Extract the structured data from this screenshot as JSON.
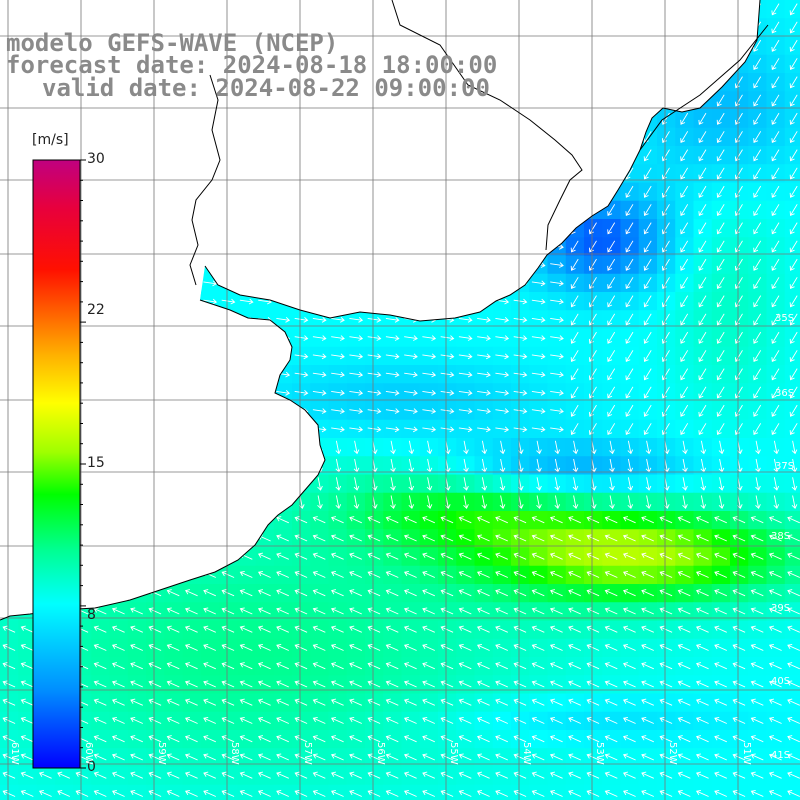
{
  "title": {
    "line1": "modelo GEFS-WAVE (NCEP)",
    "line2": "forecast date: 2024-08-18 18:00:00",
    "line3": "valid date: 2024-08-22 09:00:00"
  },
  "colorbar": {
    "unit": "[m/s]",
    "ticks": [
      "30",
      "22",
      "15",
      "8",
      "0"
    ],
    "tick_values": [
      30,
      22,
      15,
      8,
      0
    ],
    "range": [
      0,
      30
    ],
    "colors": [
      "#0000ff",
      "#00a0ff",
      "#00ffff",
      "#00ff80",
      "#00ff00",
      "#80ff00",
      "#ffff00",
      "#ffa000",
      "#ff5000",
      "#ff0000",
      "#e0004a",
      "#c0007a"
    ]
  },
  "latitude_labels": [
    "35S",
    "36S",
    "37S",
    "38S",
    "39S",
    "40S",
    "41S"
  ],
  "latitude_values": [
    35,
    36,
    37,
    38,
    39,
    40,
    41
  ],
  "longitude_labels": [
    "61W",
    "60W",
    "59W",
    "58W",
    "57W",
    "56W",
    "55W",
    "54W",
    "53W",
    "52W",
    "51W"
  ],
  "longitude_values": [
    61,
    60,
    59,
    58,
    57,
    56,
    55,
    54,
    53,
    52,
    51
  ],
  "colors": {
    "land": "#ffffff",
    "grid": "#777777",
    "coast": "#000000",
    "arrow": "#ffffff",
    "title": "#8a8a8a"
  }
}
